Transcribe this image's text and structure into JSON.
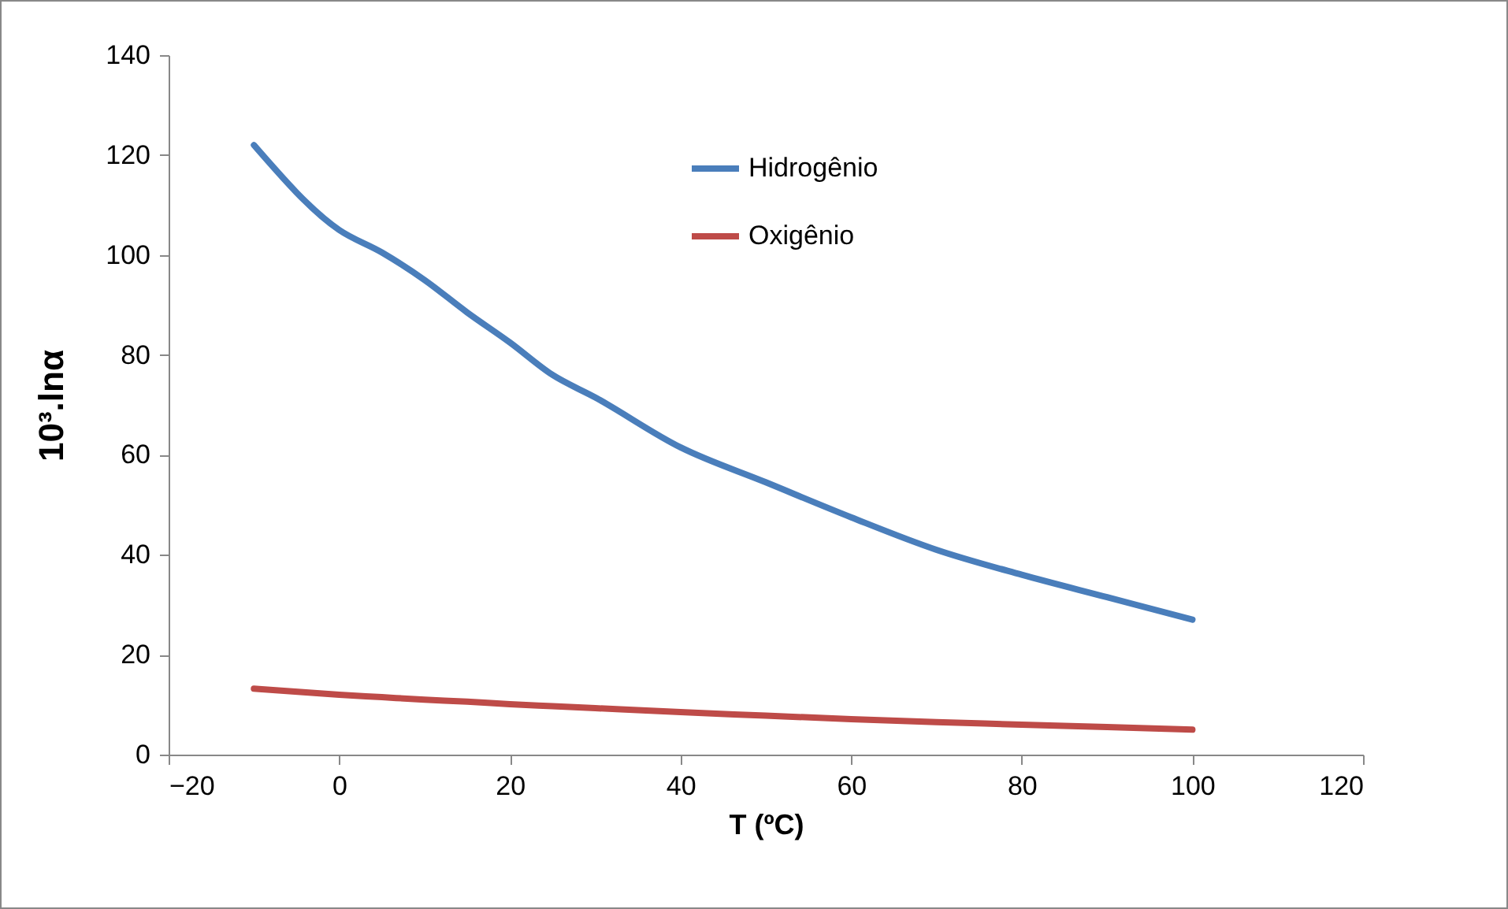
{
  "chart_data": {
    "type": "line",
    "xlabel": "T (ºC)",
    "ylabel": "10³.lnα",
    "x": [
      -10,
      0,
      5,
      10,
      15,
      20,
      25,
      30,
      40,
      50,
      60,
      70,
      80,
      90,
      100
    ],
    "series": [
      {
        "name": "Hidrogênio",
        "color": "#4a7ebb",
        "values": [
          122,
          105,
          100.5,
          95,
          88.5,
          82.5,
          76,
          71.5,
          61.5,
          54.5,
          47.5,
          41,
          36,
          31.5,
          27
        ]
      },
      {
        "name": "Oxigênio",
        "color": "#be4b48",
        "values": [
          13.2,
          12,
          11.5,
          11,
          10.6,
          10.1,
          9.7,
          9.3,
          8.5,
          7.8,
          7.1,
          6.5,
          6,
          5.5,
          5
        ]
      }
    ],
    "xlim": [
      -20,
      120
    ],
    "xticks": [
      -20,
      0,
      20,
      40,
      60,
      80,
      100,
      120
    ],
    "ylim": [
      0,
      140
    ],
    "yticks": [
      0,
      20,
      40,
      60,
      80,
      100,
      120,
      140
    ],
    "legend": "top right"
  }
}
